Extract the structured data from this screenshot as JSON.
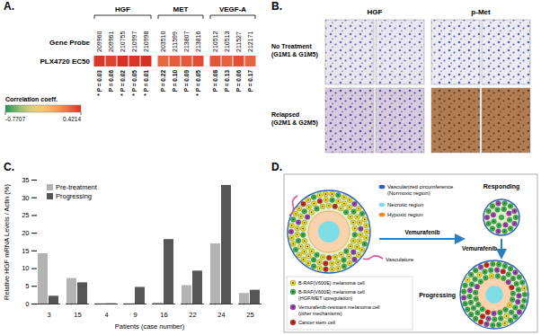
{
  "chart_data": {
    "type": "bar",
    "x_label": "Patients (case number)",
    "y_label": "Relative HGF mRNA Levels / Actin (%)",
    "categories": [
      "3",
      "15",
      "4",
      "9",
      "16",
      "22",
      "24",
      "25"
    ],
    "series": [
      {
        "name": "Pre-treatment",
        "color": "#b3b3b3",
        "values": [
          14.2,
          7.2,
          0.1,
          0.1,
          0.3,
          5.2,
          17.0,
          3.0
        ]
      },
      {
        "name": "Progressing",
        "color": "#555555",
        "values": [
          2.2,
          6.0,
          0.1,
          4.7,
          18.2,
          9.3,
          33.5,
          3.9
        ]
      }
    ],
    "ylim": [
      0,
      35
    ],
    "yticks": [
      0,
      5,
      10,
      15,
      20,
      25,
      30,
      35
    ],
    "grid": false,
    "legend": "top-left"
  },
  "figure": {
    "letters": [
      "A.",
      "B.",
      "C.",
      "D."
    ],
    "A": {
      "row_labels": [
        "Gene Probe",
        "PLX4720 EC50"
      ],
      "groups": [
        {
          "gene": "HGF",
          "probes": [
            "209960",
            "209961",
            "210755",
            "210997",
            "210998"
          ],
          "correlations": [
            0.4,
            0.36,
            0.42,
            0.41,
            0.42
          ],
          "p_values": [
            "* P = 0.03",
            "P = 0.06",
            "* P = 0.02",
            "* P = 0.05",
            "* P = 0.01"
          ]
        },
        {
          "gene": "MET",
          "probes": [
            "203510",
            "211599",
            "213807",
            "213816"
          ],
          "correlations": [
            0.24,
            0.28,
            0.29,
            0.33
          ],
          "p_values": [
            "P = 0.22",
            "P = 0.10",
            "P = 0.09",
            "* P = 0.05"
          ]
        },
        {
          "gene": "VEGF-A",
          "probes": [
            "210512",
            "210513",
            "211527",
            "212171"
          ],
          "correlations": [
            0.3,
            0.26,
            0.32,
            0.25
          ],
          "p_values": [
            "P = 0.08",
            "P = 0.13",
            "P = 0.06",
            "P = 0.17"
          ]
        }
      ],
      "color_bar": {
        "title": "Correlation coeff.",
        "range": [
          -0.7707,
          0.4214
        ],
        "ticks": [
          -0.7707,
          0.4214
        ]
      }
    },
    "B": {
      "columns": [
        "HGF",
        "p-Met"
      ],
      "rows": [
        "No Treatment (G1M1 & G1M5)",
        "Relapsed (G2M1 & G2M5)"
      ]
    },
    "D": {
      "regions": [
        {
          "label": "Vascularized circumference (Normoxic region)",
          "color": "#2b63b8"
        },
        {
          "label": "Necrotic region",
          "color": "#7fdde6"
        },
        {
          "label": "Hypoxic region",
          "color": "#f08c2a"
        }
      ],
      "vasculature": {
        "label": "Vasculature",
        "color": "#e0559a"
      },
      "cells": [
        {
          "label": "B-RAF(V600E) melanoma cell",
          "color": "#f2e01e"
        },
        {
          "label": "B-RAF(V600E) melanoma cell (HGF/MET upregulation)",
          "color": "#35b34a"
        },
        {
          "label": "Vemurafenib-resistant melanoma cell (other mechanisms)",
          "color": "#9b3fb5"
        },
        {
          "label": "Cancer stem cell",
          "color": "#d62020"
        }
      ],
      "treatment": "Vemurafenib",
      "states": [
        "Responding",
        "Progressing"
      ]
    }
  }
}
